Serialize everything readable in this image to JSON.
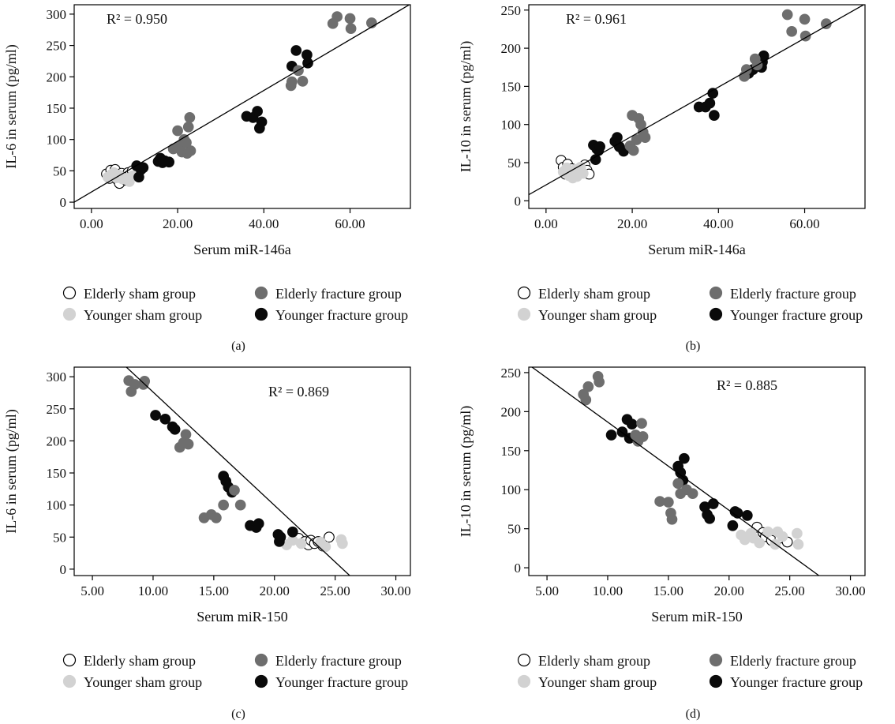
{
  "colors": {
    "elderly_sham": "#ffffff",
    "elderly_fracture": "#6e6e6e",
    "younger_sham": "#d2d2d2",
    "younger_fracture": "#0a0a0a",
    "line": "#000000"
  },
  "legend": {
    "elderly_sham": "Elderly sham group",
    "elderly_fracture": "Elderly fracture group",
    "younger_sham": "Younger sham group",
    "younger_fracture": "Younger fracture group"
  },
  "chart_data": [
    {
      "type": "scatter",
      "panel_label": "(a)",
      "annotation": "R² = 0.950",
      "xlabel": "Serum miR-146a",
      "ylabel": "IL-6 in serum (pg/ml)",
      "xlim": [
        -4,
        74
      ],
      "ylim": [
        -10,
        315
      ],
      "xticks": [
        0,
        20,
        40,
        60
      ],
      "xtick_labels": [
        "0.00",
        "20.00",
        "40.00",
        "60.00"
      ],
      "yticks": [
        0,
        50,
        100,
        150,
        200,
        250,
        300
      ],
      "ytick_labels": [
        "0",
        "50",
        "100",
        "150",
        "200",
        "250",
        "300"
      ],
      "fit_line": [
        [
          -4,
          0
        ],
        [
          74,
          316
        ]
      ],
      "series": [
        {
          "group": "elderly_sham",
          "points": [
            [
              3.5,
              45
            ],
            [
              4.2,
              38
            ],
            [
              4.5,
              51
            ],
            [
              5.0,
              42
            ],
            [
              5.5,
              52
            ],
            [
              6.0,
              36
            ],
            [
              6.5,
              30
            ],
            [
              7.0,
              46
            ],
            [
              7.5,
              40
            ],
            [
              8.0,
              35
            ],
            [
              8.5,
              47
            ],
            [
              9.0,
              44
            ],
            [
              9.5,
              50
            ]
          ]
        },
        {
          "group": "younger_sham",
          "points": [
            [
              3.8,
              40
            ],
            [
              4.6,
              44
            ],
            [
              5.2,
              47
            ],
            [
              5.8,
              39
            ],
            [
              6.4,
              43
            ],
            [
              7.2,
              37
            ],
            [
              8.2,
              38
            ],
            [
              8.8,
              33
            ],
            [
              9.6,
              42
            ]
          ]
        },
        {
          "group": "younger_fracture",
          "points": [
            [
              10.5,
              58
            ],
            [
              11.0,
              40
            ],
            [
              11.5,
              52
            ],
            [
              12.0,
              55
            ],
            [
              15.5,
              65
            ],
            [
              16.0,
              70
            ],
            [
              16.5,
              63
            ],
            [
              17.0,
              66
            ],
            [
              18.0,
              64
            ],
            [
              36.0,
              137
            ],
            [
              37.5,
              135
            ],
            [
              38.5,
              145
            ],
            [
              39.0,
              118
            ],
            [
              39.5,
              128
            ],
            [
              46.5,
              217
            ],
            [
              47.5,
              242
            ],
            [
              50.0,
              235
            ],
            [
              50.2,
              222
            ]
          ]
        },
        {
          "group": "elderly_fracture",
          "points": [
            [
              19.0,
              85
            ],
            [
              20.0,
              114
            ],
            [
              20.5,
              90
            ],
            [
              21.0,
              80
            ],
            [
              21.5,
              100
            ],
            [
              22.0,
              95
            ],
            [
              22.2,
              78
            ],
            [
              22.5,
              120
            ],
            [
              22.8,
              135
            ],
            [
              23.0,
              82
            ],
            [
              46.3,
              186
            ],
            [
              46.5,
              192
            ],
            [
              48.0,
              210
            ],
            [
              49.0,
              193
            ],
            [
              56.0,
              285
            ],
            [
              57.0,
              296
            ],
            [
              60.0,
              293
            ],
            [
              60.2,
              277
            ],
            [
              65.0,
              286
            ]
          ]
        }
      ]
    },
    {
      "type": "scatter",
      "panel_label": "(b)",
      "annotation": "R² = 0.961",
      "xlabel": "Serum miR-146a",
      "ylabel": "IL-10 in serum (pg/ml)",
      "xlim": [
        -4,
        74
      ],
      "ylim": [
        -10,
        257
      ],
      "xticks": [
        0,
        20,
        40,
        60
      ],
      "xtick_labels": [
        "0.00",
        "20.00",
        "40.00",
        "60.00"
      ],
      "yticks": [
        0,
        50,
        100,
        150,
        200,
        250
      ],
      "ytick_labels": [
        "0",
        "50",
        "100",
        "150",
        "200",
        "250"
      ],
      "fit_line": [
        [
          -4,
          8
        ],
        [
          74,
          258
        ]
      ],
      "series": [
        {
          "group": "elderly_sham",
          "points": [
            [
              3.5,
              53
            ],
            [
              4.0,
              44
            ],
            [
              4.5,
              35
            ],
            [
              5.0,
              48
            ],
            [
              5.5,
              40
            ],
            [
              6.0,
              42
            ],
            [
              7.5,
              38
            ],
            [
              9.0,
              47
            ],
            [
              9.5,
              40
            ],
            [
              10.0,
              35
            ]
          ]
        },
        {
          "group": "younger_sham",
          "points": [
            [
              4.0,
              38
            ],
            [
              4.8,
              43
            ],
            [
              5.3,
              33
            ],
            [
              6.2,
              30
            ],
            [
              6.8,
              41
            ],
            [
              7.2,
              32
            ],
            [
              8.0,
              44
            ],
            [
              8.6,
              36
            ]
          ]
        },
        {
          "group": "younger_fracture",
          "points": [
            [
              11.0,
              73
            ],
            [
              11.5,
              54
            ],
            [
              11.8,
              68
            ],
            [
              12.2,
              66
            ],
            [
              12.5,
              71
            ],
            [
              16.0,
              78
            ],
            [
              16.5,
              83
            ],
            [
              17.0,
              71
            ],
            [
              18.0,
              65
            ],
            [
              35.5,
              123
            ],
            [
              37.0,
              123
            ],
            [
              38.0,
              128
            ],
            [
              38.7,
              141
            ],
            [
              39.0,
              112
            ],
            [
              47.0,
              167
            ],
            [
              48.0,
              172
            ],
            [
              50.0,
              175
            ],
            [
              50.2,
              182
            ],
            [
              50.5,
              190
            ]
          ]
        },
        {
          "group": "elderly_fracture",
          "points": [
            [
              19.5,
              72
            ],
            [
              20.0,
              112
            ],
            [
              20.3,
              66
            ],
            [
              21.0,
              80
            ],
            [
              21.5,
              108
            ],
            [
              22.0,
              100
            ],
            [
              22.5,
              90
            ],
            [
              23.0,
              83
            ],
            [
              46.0,
              163
            ],
            [
              46.5,
              172
            ],
            [
              48.5,
              186
            ],
            [
              49.0,
              178
            ],
            [
              56.0,
              244
            ],
            [
              57.0,
              222
            ],
            [
              60.0,
              238
            ],
            [
              60.2,
              216
            ],
            [
              65.0,
              232
            ]
          ]
        }
      ]
    },
    {
      "type": "scatter",
      "panel_label": "(c)",
      "annotation": "R² = 0.869",
      "xlabel": "Serum miR-150",
      "ylabel": "IL-6 in serum (pg/ml)",
      "xlim": [
        3.5,
        31.2
      ],
      "ylim": [
        -10,
        315
      ],
      "xticks": [
        5,
        10,
        15,
        20,
        25,
        30
      ],
      "xtick_labels": [
        "5.00",
        "10.00",
        "15.00",
        "20.00",
        "25.00",
        "30.00"
      ],
      "yticks": [
        0,
        50,
        100,
        150,
        200,
        250,
        300
      ],
      "ytick_labels": [
        "0",
        "50",
        "100",
        "150",
        "200",
        "250",
        "300"
      ],
      "fit_line": [
        [
          7.8,
          315
        ],
        [
          26.2,
          -10
        ]
      ],
      "series": [
        {
          "group": "elderly_sham",
          "points": [
            [
              22.0,
              48
            ],
            [
              22.5,
              43
            ],
            [
              22.8,
              38
            ],
            [
              23.0,
              45
            ],
            [
              23.3,
              40
            ],
            [
              23.6,
              43
            ],
            [
              24.0,
              36
            ],
            [
              24.5,
              50
            ]
          ]
        },
        {
          "group": "younger_sham",
          "points": [
            [
              21.0,
              38
            ],
            [
              21.5,
              45
            ],
            [
              22.2,
              40
            ],
            [
              23.8,
              42
            ],
            [
              24.2,
              35
            ],
            [
              25.5,
              46
            ],
            [
              25.6,
              40
            ]
          ]
        },
        {
          "group": "younger_fracture",
          "points": [
            [
              10.2,
              240
            ],
            [
              11.0,
              234
            ],
            [
              11.6,
              222
            ],
            [
              11.8,
              218
            ],
            [
              15.8,
              145
            ],
            [
              16.0,
              137
            ],
            [
              16.2,
              128
            ],
            [
              16.5,
              120
            ],
            [
              18.0,
              68
            ],
            [
              18.5,
              65
            ],
            [
              18.7,
              71
            ],
            [
              20.3,
              54
            ],
            [
              20.4,
              43
            ],
            [
              20.5,
              50
            ],
            [
              21.5,
              58
            ]
          ]
        },
        {
          "group": "elderly_fracture",
          "points": [
            [
              8.0,
              294
            ],
            [
              8.2,
              277
            ],
            [
              8.5,
              288
            ],
            [
              9.2,
              288
            ],
            [
              9.3,
              293
            ],
            [
              12.2,
              190
            ],
            [
              12.5,
              197
            ],
            [
              12.7,
              210
            ],
            [
              12.9,
              195
            ],
            [
              14.2,
              80
            ],
            [
              14.8,
              85
            ],
            [
              15.2,
              80
            ],
            [
              15.8,
              100
            ],
            [
              16.7,
              123
            ],
            [
              17.2,
              100
            ]
          ]
        }
      ]
    },
    {
      "type": "scatter",
      "panel_label": "(d)",
      "annotation": "R² = 0.885",
      "xlabel": "Serum miR-150",
      "ylabel": "IL-10 in serum (pg/ml)",
      "xlim": [
        3.5,
        31.2
      ],
      "ylim": [
        -10,
        257
      ],
      "xticks": [
        5,
        10,
        15,
        20,
        25,
        30
      ],
      "xtick_labels": [
        "5.00",
        "10.00",
        "15.00",
        "20.00",
        "25.00",
        "30.00"
      ],
      "yticks": [
        0,
        50,
        100,
        150,
        200,
        250
      ],
      "ytick_labels": [
        "0",
        "50",
        "100",
        "150",
        "200",
        "250"
      ],
      "fit_line": [
        [
          3.5,
          260
        ],
        [
          27.4,
          -10
        ]
      ],
      "series": [
        {
          "group": "elderly_sham",
          "points": [
            [
              22.3,
              52
            ],
            [
              22.8,
              45
            ],
            [
              23.0,
              40
            ],
            [
              23.5,
              35
            ],
            [
              24.2,
              38
            ],
            [
              24.8,
              33
            ]
          ]
        },
        {
          "group": "younger_sham",
          "points": [
            [
              21.0,
              42
            ],
            [
              21.3,
              36
            ],
            [
              21.8,
              44
            ],
            [
              22.0,
              38
            ],
            [
              22.5,
              32
            ],
            [
              23.2,
              46
            ],
            [
              23.8,
              30
            ],
            [
              24.0,
              46
            ],
            [
              24.4,
              40
            ],
            [
              25.6,
              44
            ],
            [
              25.7,
              30
            ]
          ]
        },
        {
          "group": "younger_fracture",
          "points": [
            [
              10.3,
              170
            ],
            [
              11.2,
              174
            ],
            [
              11.6,
              190
            ],
            [
              11.8,
              166
            ],
            [
              12.0,
              184
            ],
            [
              15.8,
              130
            ],
            [
              16.0,
              122
            ],
            [
              16.2,
              112
            ],
            [
              16.3,
              140
            ],
            [
              18.0,
              78
            ],
            [
              18.2,
              68
            ],
            [
              18.4,
              63
            ],
            [
              18.7,
              82
            ],
            [
              20.3,
              54
            ],
            [
              20.5,
              72
            ],
            [
              20.7,
              70
            ],
            [
              21.5,
              67
            ]
          ]
        },
        {
          "group": "elderly_fracture",
          "points": [
            [
              8.0,
              222
            ],
            [
              8.2,
              215
            ],
            [
              8.4,
              232
            ],
            [
              9.2,
              245
            ],
            [
              9.3,
              238
            ],
            [
              12.3,
              170
            ],
            [
              12.5,
              162
            ],
            [
              12.8,
              185
            ],
            [
              12.9,
              168
            ],
            [
              14.3,
              85
            ],
            [
              15.0,
              84
            ],
            [
              15.2,
              70
            ],
            [
              15.3,
              62
            ],
            [
              15.8,
              108
            ],
            [
              16.0,
              95
            ],
            [
              16.5,
              100
            ],
            [
              17.0,
              95
            ]
          ]
        }
      ]
    }
  ]
}
